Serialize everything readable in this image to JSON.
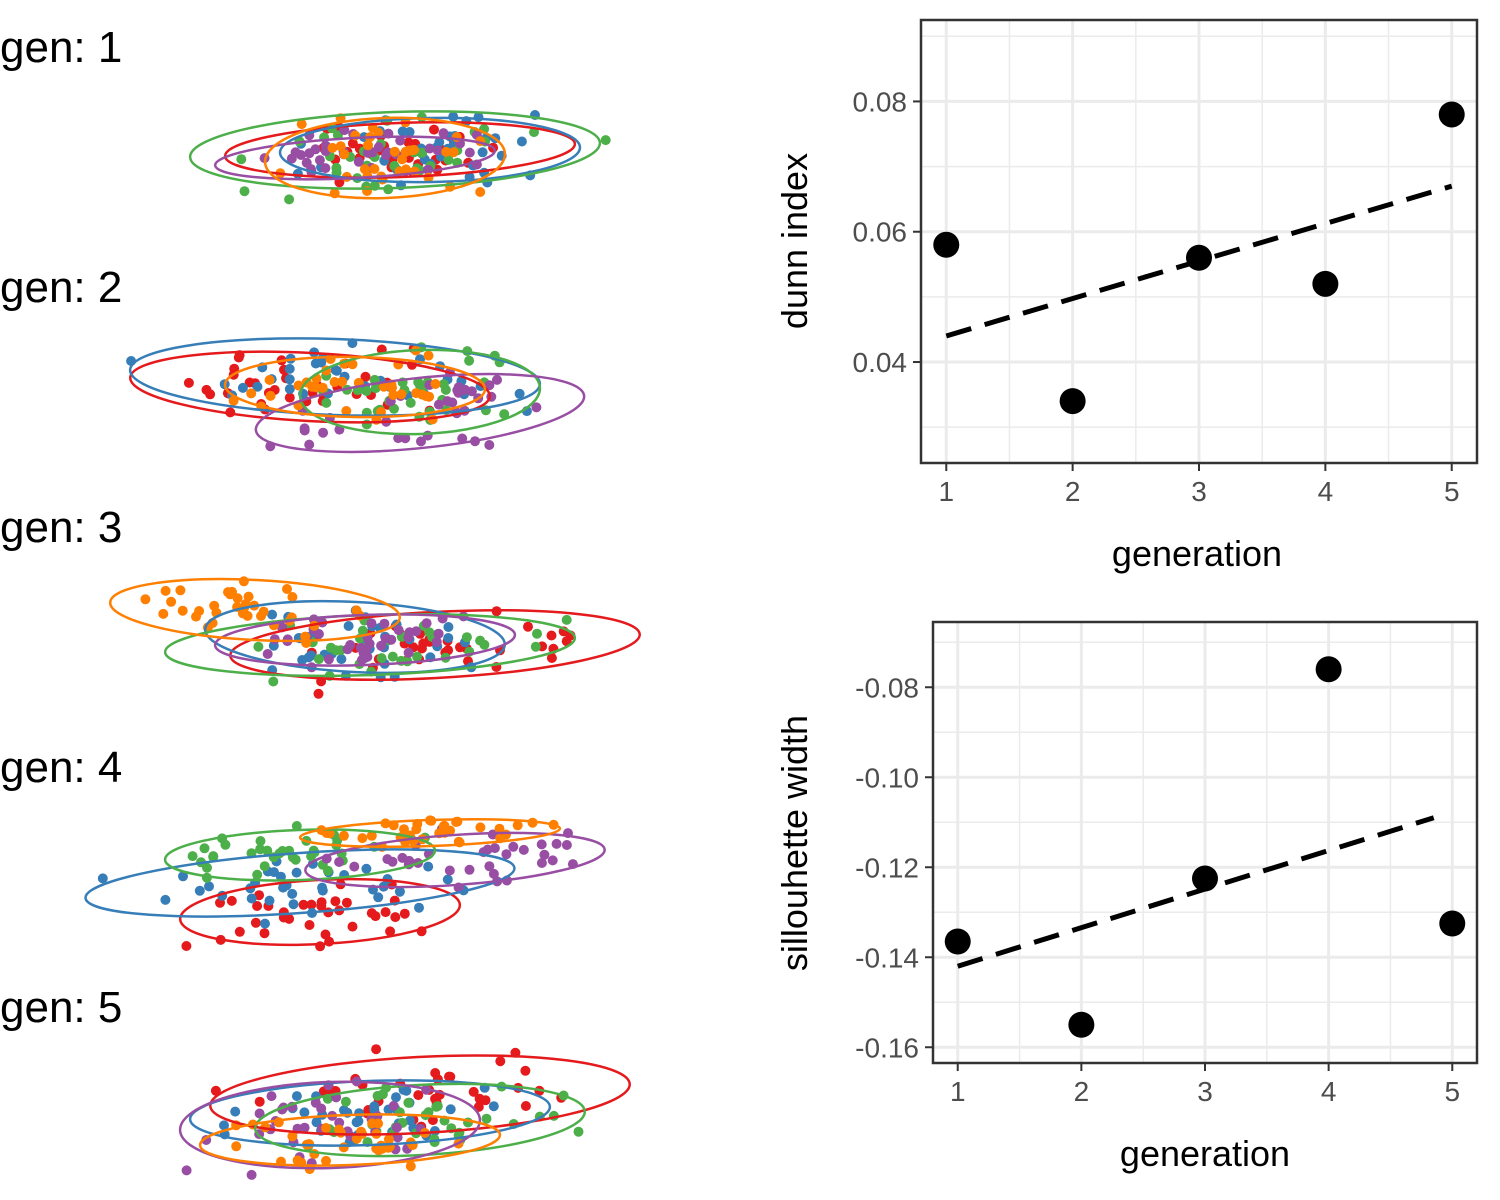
{
  "colors": {
    "red": "#e41a1c",
    "blue": "#377eb8",
    "green": "#4daf4a",
    "purple": "#984ea3",
    "orange": "#ff7f00",
    "grid": "#ebebeb",
    "panel_border": "#333333",
    "marks": "#000000"
  },
  "clusters": {
    "gen_prefix": "gen: ",
    "generations": [
      {
        "gen": 1,
        "label": "gen: 1"
      },
      {
        "gen": 2,
        "label": "gen: 2"
      },
      {
        "gen": 3,
        "label": "gen: 3"
      },
      {
        "gen": 4,
        "label": "gen: 4"
      },
      {
        "gen": 5,
        "label": "gen: 5"
      }
    ],
    "series_colors": [
      "red",
      "blue",
      "green",
      "purple",
      "orange"
    ],
    "points_per_cluster": 36
  },
  "chart_data": [
    {
      "type": "scatter",
      "xlabel": "generation",
      "ylabel": "dunn index",
      "x": [
        1,
        2,
        3,
        4,
        5
      ],
      "y": [
        0.058,
        0.034,
        0.056,
        0.052,
        0.078
      ],
      "trend_line": {
        "style": "dashed",
        "x": [
          1,
          5
        ],
        "y": [
          0.044,
          0.067
        ]
      },
      "xlim": [
        0.8,
        5.2
      ],
      "ylim": [
        0.0245,
        0.0925
      ],
      "xticks": [
        1,
        2,
        3,
        4,
        5
      ],
      "yticks": [
        0.04,
        0.06,
        0.08
      ],
      "ytick_labels": [
        "0.04",
        "0.06",
        "0.08"
      ],
      "grid": true
    },
    {
      "type": "scatter",
      "xlabel": "generation",
      "ylabel": "sillouhette width",
      "x": [
        1,
        2,
        3,
        4,
        5
      ],
      "y": [
        -0.1365,
        -0.155,
        -0.1225,
        -0.076,
        -0.1325
      ],
      "trend_line": {
        "style": "dashed",
        "x": [
          1,
          4.85
        ],
        "y": [
          -0.142,
          -0.109
        ]
      },
      "xlim": [
        0.8,
        5.2
      ],
      "ylim": [
        -0.1635,
        -0.0655
      ],
      "xticks": [
        1,
        2,
        3,
        4,
        5
      ],
      "yticks": [
        -0.16,
        -0.14,
        -0.12,
        -0.1,
        -0.08
      ],
      "ytick_labels": [
        "-0.16",
        "-0.14",
        "-0.12",
        "-0.10",
        "-0.08"
      ],
      "grid": true
    }
  ]
}
